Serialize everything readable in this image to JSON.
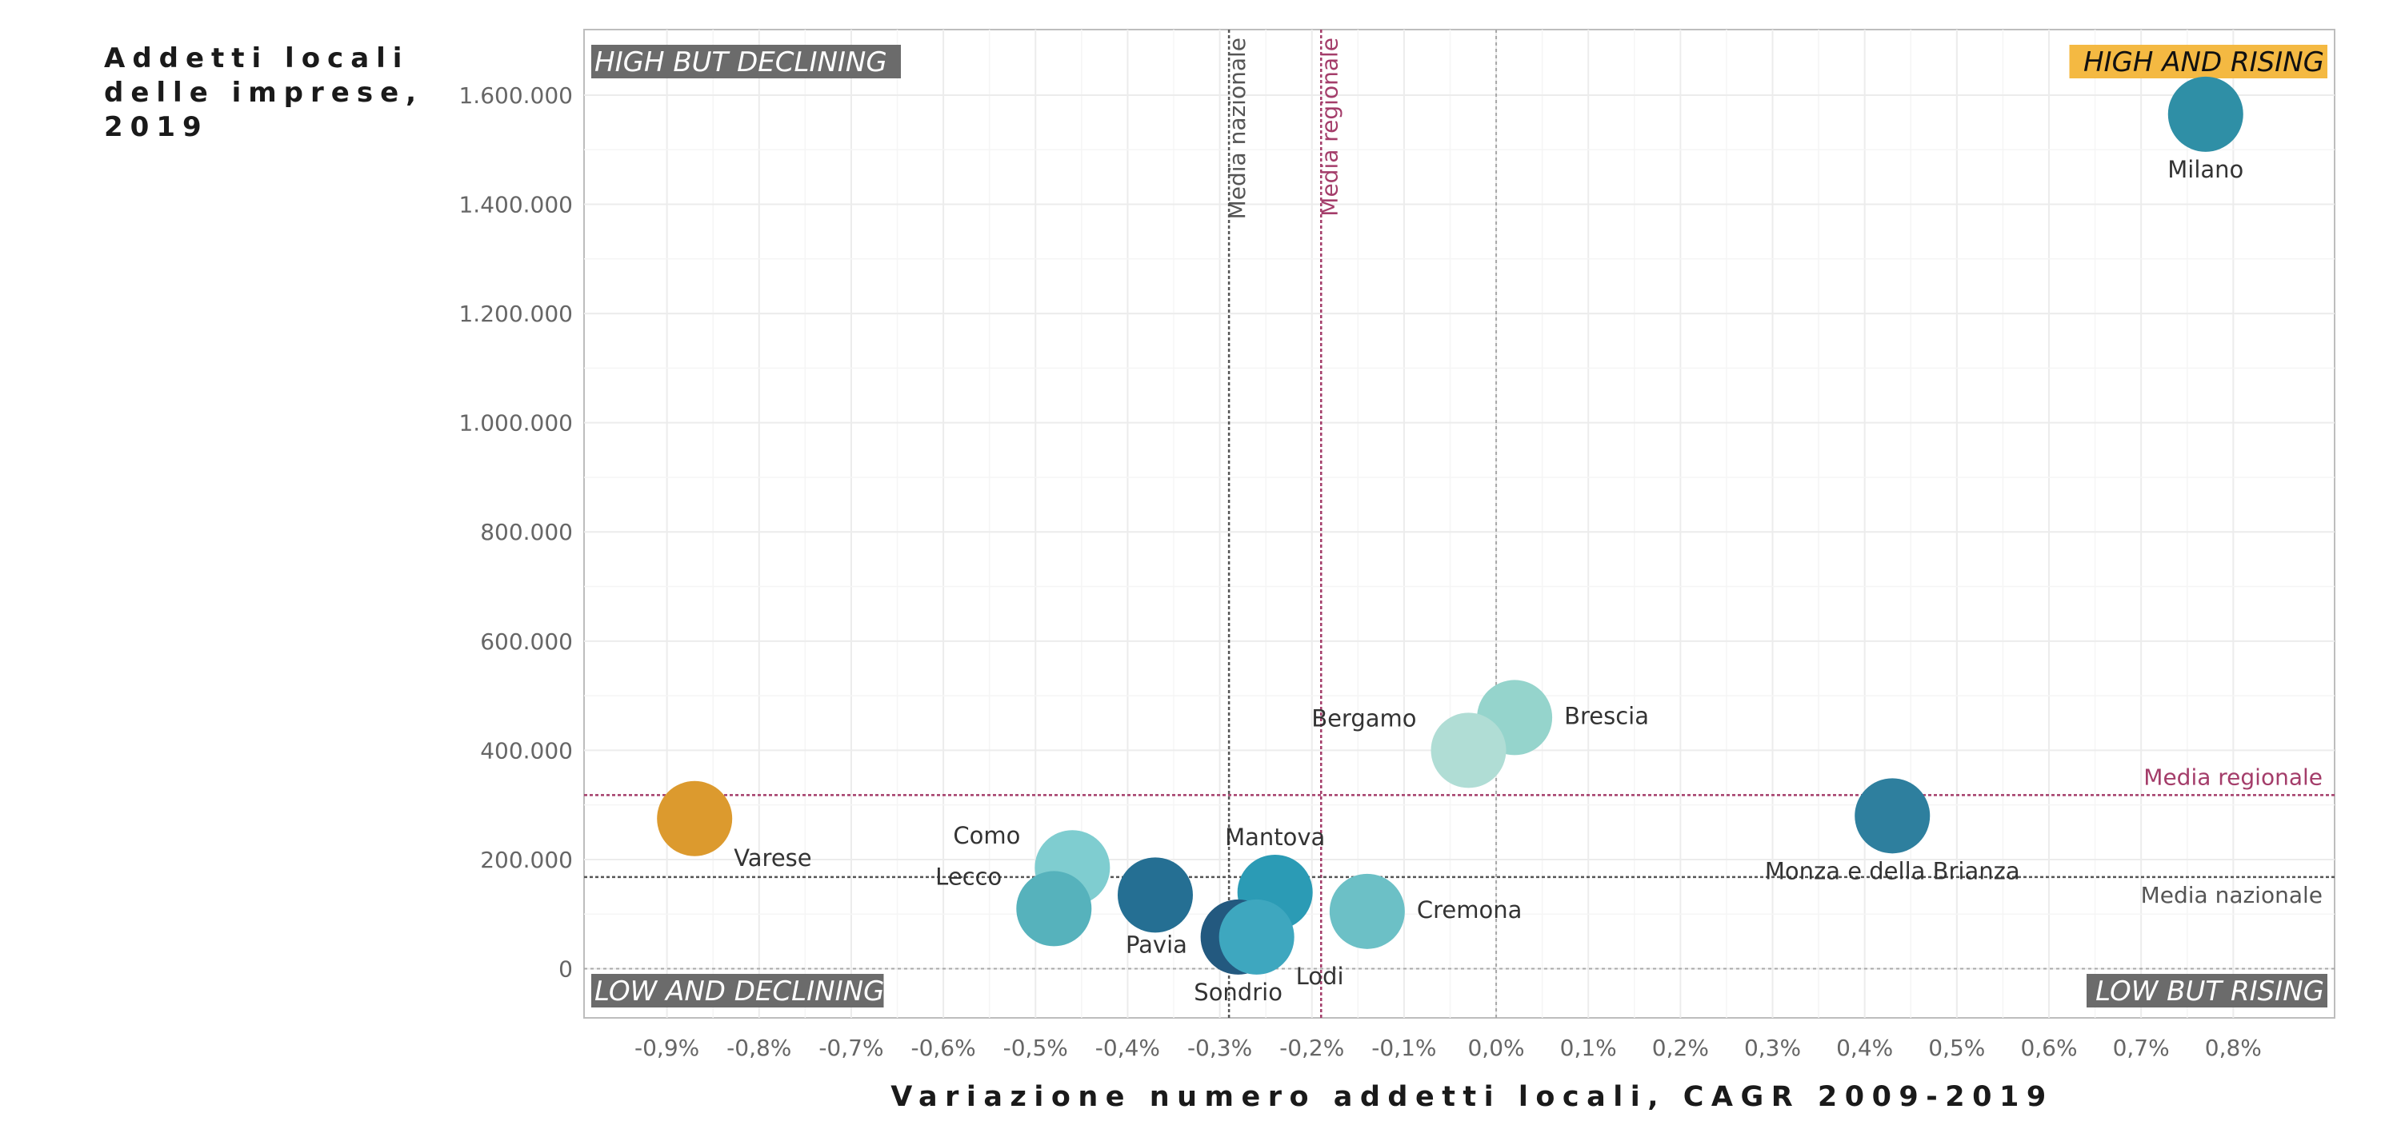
{
  "chart_data": {
    "type": "scatter",
    "ylabel": "Addetti locali delle imprese, 2019",
    "xlabel": "Variazione numero addetti locali, CAGR 2009-2019",
    "xlim": [
      -0.99,
      0.91
    ],
    "ylim": [
      -90000,
      1720000
    ],
    "x_ticks": [
      -0.9,
      -0.8,
      -0.7,
      -0.6,
      -0.5,
      -0.4,
      -0.3,
      -0.2,
      -0.1,
      0.0,
      0.1,
      0.2,
      0.3,
      0.4,
      0.5,
      0.6,
      0.7,
      0.8
    ],
    "x_tick_labels": [
      "-0,9%",
      "-0,8%",
      "-0,7%",
      "-0,6%",
      "-0,5%",
      "-0,4%",
      "-0,3%",
      "-0,2%",
      "-0,1%",
      "0,0%",
      "0,1%",
      "0,2%",
      "0,3%",
      "0,4%",
      "0,5%",
      "0,6%",
      "0,7%",
      "0,8%"
    ],
    "y_ticks": [
      0,
      200000,
      400000,
      600000,
      800000,
      1000000,
      1200000,
      1400000,
      1600000
    ],
    "y_tick_labels": [
      "0",
      "200.000",
      "400.000",
      "600.000",
      "800.000",
      "1.000.000",
      "1.200.000",
      "1.400.000",
      "1.600.000"
    ],
    "grid": true,
    "points": [
      {
        "name": "Milano",
        "x": 0.77,
        "y": 1565000,
        "color": "#2f8fa6",
        "label_pos": "below"
      },
      {
        "name": "Brescia",
        "x": 0.02,
        "y": 460000,
        "color": "#95d4cc",
        "label_pos": "right"
      },
      {
        "name": "Bergamo",
        "x": -0.03,
        "y": 400000,
        "color": "#b0ddd5",
        "label_pos": "left"
      },
      {
        "name": "Monza e della Brianza",
        "x": 0.43,
        "y": 280000,
        "color": "#2e7f9e",
        "label_pos": "below"
      },
      {
        "name": "Varese",
        "x": -0.87,
        "y": 275000,
        "color": "#dc9a2e",
        "label_pos": "below-right"
      },
      {
        "name": "Como",
        "x": -0.46,
        "y": 185000,
        "color": "#7fcdd0",
        "label_pos": "left"
      },
      {
        "name": "Mantova",
        "x": -0.24,
        "y": 140000,
        "color": "#2b9bb5",
        "label_pos": "above"
      },
      {
        "name": "Cremona",
        "x": -0.14,
        "y": 105000,
        "color": "#6cc0c6",
        "label_pos": "right"
      },
      {
        "name": "Pavia",
        "x": -0.37,
        "y": 135000,
        "color": "#256f93",
        "label_pos": "below-left"
      },
      {
        "name": "Lecco",
        "x": -0.48,
        "y": 110000,
        "color": "#56b2bc",
        "label_pos": "left"
      },
      {
        "name": "Sondrio",
        "x": -0.28,
        "y": 58000,
        "color": "#23597f",
        "label_pos": "below"
      },
      {
        "name": "Lodi",
        "x": -0.26,
        "y": 58000,
        "color": "#3ea7bf",
        "label_pos": "below-right"
      }
    ],
    "reference_lines": {
      "media_nazionale_x": -0.29,
      "media_regionale_x": -0.19,
      "media_regionale_y": 318000,
      "media_nazionale_y": 168000,
      "label_media_nazionale": "Media nazionale",
      "label_media_regionale": "Media regionale",
      "color_nazionale": "#555555",
      "color_regionale": "#a43d6a"
    },
    "quadrants": {
      "top_left": "HIGH BUT DECLINING",
      "top_right": "HIGH AND RISING",
      "bottom_left": "LOW AND DECLINING",
      "bottom_right": "LOW BUT RISING",
      "highlight_color": "#f4b942",
      "muted_color": "#6b6b6b"
    }
  }
}
